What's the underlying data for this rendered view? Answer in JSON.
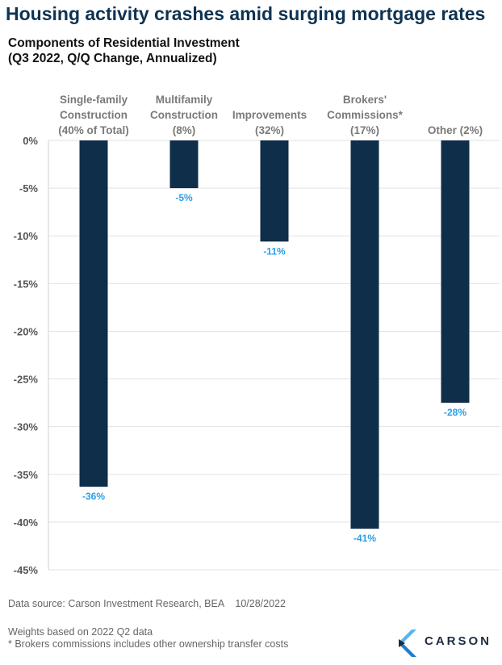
{
  "title": "Housing activity crashes amid surging mortgage rates",
  "chart_data": {
    "type": "bar",
    "title": "Components of Residential Investment",
    "subtitle": "(Q3 2022, Q/Q Change, Annualized)",
    "categories": [
      [
        "Single-family",
        "Construction",
        "(40% of Total)"
      ],
      [
        "Multifamily",
        "Construction",
        "(8%)"
      ],
      [
        "Improvements",
        "(32%)"
      ],
      [
        "Brokers'",
        "Commissions*",
        "(17%)"
      ],
      [
        "Other (2%)"
      ]
    ],
    "values": [
      -36.3,
      -5.0,
      -10.6,
      -40.7,
      -27.5
    ],
    "data_labels": [
      "-36%",
      "-5%",
      "-11%",
      "-41%",
      "-28%"
    ],
    "ylim": [
      -45,
      0
    ],
    "yticks": [
      0,
      -5,
      -10,
      -15,
      -20,
      -25,
      -30,
      -35,
      -40,
      -45
    ],
    "ytick_labels": [
      "0%",
      "-5%",
      "-10%",
      "-15%",
      "-20%",
      "-25%",
      "-30%",
      "-35%",
      "-40%",
      "-45%"
    ],
    "grid": true,
    "bar_color": "#0e2e4a",
    "label_color": "#2a9ee6"
  },
  "footer": {
    "source": "Data source: Carson Investment Research, BEA    10/28/2022",
    "note1": "Weights based on 2022 Q2 data",
    "note2": "* Brokers commissions includes other ownership transfer costs"
  },
  "logo": {
    "text": "CARSON"
  }
}
